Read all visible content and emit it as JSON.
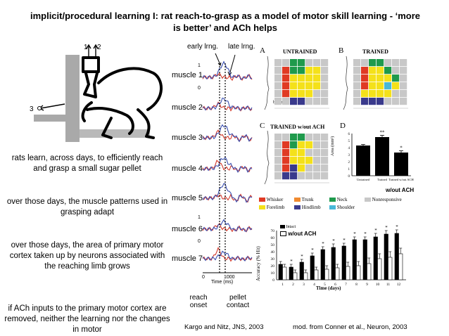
{
  "title": "implicit/procedural learning I: rat reach-to-grasp as a model of motor skill learning - ‘more is better’ and ACh helps",
  "left_text": [
    "rats learn, across days, to efficiently reach and grasp a small sugar pellet",
    "over those days, the muscle patterns used in grasping adapt",
    "over those days, the area of primary motor cortex taken up by neurons associated with the reaching limb grows",
    "if ACh inputs to the primary motor cortex are removed, neither the learning nor the changes in motor"
  ],
  "rat_labels": {
    "arrow1": "1",
    "arrow2": "2",
    "arrow3": "3"
  },
  "emg": {
    "early_label": "early lrng.",
    "late_label": "late lrng.",
    "muscles": [
      "muscle 1",
      "muscle 2",
      "muscle 3",
      "muscle 4",
      "muscle 5",
      "muscle 6",
      "muscle 7"
    ],
    "scale_marks": [
      "1",
      "0",
      "1",
      "0"
    ],
    "time_ticks": [
      "0",
      "1000"
    ],
    "time_axis_label": "Time (ms)",
    "reach_onset": "reach onset",
    "pellet_contact": "pellet contact",
    "colors": {
      "early": "#d33a2c",
      "late": "#3a4fb0"
    }
  },
  "maps": {
    "A": {
      "letter": "A",
      "title": "UNTRAINED"
    },
    "B": {
      "letter": "B",
      "title": "TRAINED"
    },
    "C": {
      "letter": "C",
      "title": "TRAINED w/out ACH"
    },
    "bregma": "bregma",
    "legend": [
      {
        "label": "Whisker",
        "color": "#e03a24"
      },
      {
        "label": "Trunk",
        "color": "#f08a30"
      },
      {
        "label": "Neck",
        "color": "#1f9a4c"
      },
      {
        "label": "Nonresponsive",
        "color": "#c8c8c8"
      },
      {
        "label": "Forelimb",
        "color": "#f4e11a"
      },
      {
        "label": "Hindlimb",
        "color": "#3a3a8c"
      },
      {
        "label": "Shoulder",
        "color": "#47b8d8"
      }
    ]
  },
  "chart_data": [
    {
      "type": "bar",
      "panel": "D",
      "categories": [
        "Untrained",
        "Trained",
        "Trained w/out ACH"
      ],
      "values": [
        4.3,
        5.5,
        3.3
      ],
      "errors": [
        0.15,
        0.25,
        0.25
      ],
      "significance": [
        "",
        "**",
        "*"
      ],
      "ylabel": "Area (mm²)",
      "yticks": [
        "0",
        "1",
        "2",
        "3",
        "4",
        "5",
        "6"
      ],
      "ylim": [
        0,
        6
      ],
      "annotation": "w/out ACH"
    },
    {
      "type": "bar",
      "categories": [
        "1",
        "2",
        "3",
        "4",
        "5",
        "6",
        "7",
        "8",
        "9",
        "10",
        "11",
        "12"
      ],
      "series": [
        {
          "name": "Intact",
          "values": [
            22,
            18,
            25,
            34,
            43,
            46,
            48,
            57,
            57,
            61,
            65,
            66
          ],
          "errors": [
            4,
            4,
            4,
            4,
            4,
            5,
            4,
            4,
            4,
            5,
            5,
            5
          ]
        },
        {
          "name": "w/out ACH",
          "values": [
            18,
            10,
            10,
            14,
            15,
            17,
            19,
            20,
            23,
            30,
            32,
            37
          ],
          "errors": [
            4,
            4,
            4,
            4,
            5,
            5,
            6,
            6,
            8,
            7,
            8,
            8
          ]
        }
      ],
      "significance": [
        "",
        "*",
        "*",
        "*",
        "*",
        "*",
        "*",
        "*",
        "*",
        "*",
        "*",
        "*"
      ],
      "ylabel": "Accuracy (% Hit)",
      "xlabel": "Time (days)",
      "yticks": [
        "0",
        "10",
        "20",
        "30",
        "40",
        "50",
        "60",
        "70"
      ],
      "ylim": [
        0,
        70
      ]
    }
  ],
  "citations": {
    "left": "Kargo and Nitz, JNS, 2003",
    "right": "mod. from Conner et al., Neuron, 2003"
  }
}
